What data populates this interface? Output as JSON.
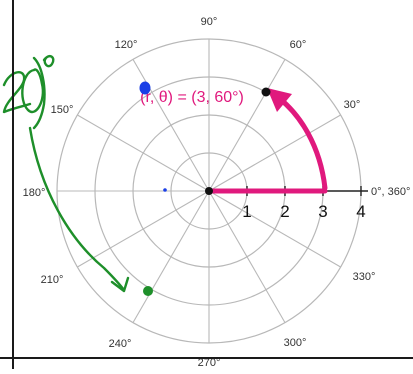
{
  "diagram": {
    "angle_labels": {
      "a0": "0°, 360°",
      "a30": "30°",
      "a60": "60°",
      "a90": "90°",
      "a120": "120°",
      "a150": "150°",
      "a180": "180°",
      "a210": "210°",
      "a240": "240°",
      "a270": "270°",
      "a300": "300°",
      "a330": "330°"
    },
    "radius_labels": [
      "1",
      "2",
      "3",
      "4"
    ],
    "point_label": "(r, θ) = (3, 60°)",
    "point": {
      "r": 3,
      "theta_deg": 60
    },
    "handwritten_note": "20°",
    "colors": {
      "grid": "#b8b8b8",
      "axis": "#222222",
      "accent": "#e0197d",
      "ink_green": "#1e8f2a",
      "ink_blue": "#1a3fe6"
    }
  }
}
